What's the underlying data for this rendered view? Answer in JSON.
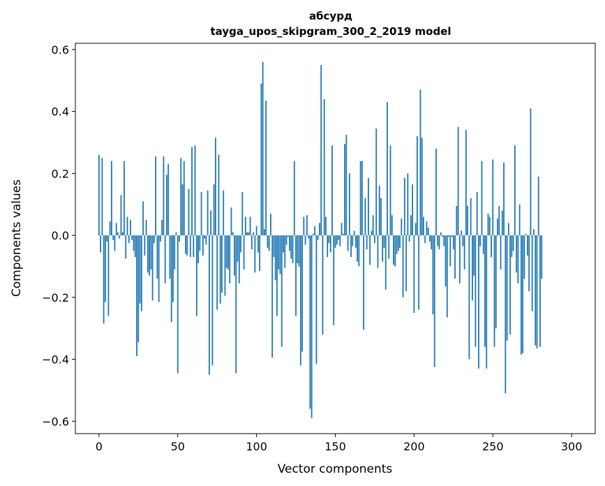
{
  "chart_data": {
    "type": "bar",
    "title": "абсурд",
    "subtitle": "tayga_upos_skipgram_300_2_2019 model",
    "xlabel": "Vector components",
    "ylabel": "Components values",
    "xlim": [
      -15,
      315
    ],
    "ylim": [
      -0.64,
      0.62
    ],
    "xticks": [
      0,
      50,
      100,
      150,
      200,
      250,
      300
    ],
    "xtick_labels": [
      "0",
      "50",
      "100",
      "150",
      "200",
      "250",
      "300"
    ],
    "yticks": [
      -0.6,
      -0.4,
      -0.2,
      0.0,
      0.2,
      0.4,
      0.6
    ],
    "ytick_labels": [
      "−0.6",
      "−0.4",
      "−0.2",
      "0.0",
      "0.2",
      "0.4",
      "0.6"
    ],
    "grid": false,
    "bar_color": "#1f77b4",
    "values": [
      0.26,
      -0.055,
      0.25,
      -0.285,
      -0.215,
      -0.02,
      -0.26,
      0.045,
      0.24,
      -0.015,
      -0.05,
      0.04,
      0.01,
      -0.01,
      0.13,
      0.01,
      0.24,
      -0.075,
      0.06,
      -0.025,
      0.05,
      -0.015,
      -0.05,
      -0.07,
      -0.39,
      -0.345,
      -0.22,
      -0.245,
      0.11,
      -0.065,
      0.05,
      -0.12,
      -0.13,
      -0.11,
      -0.21,
      -0.025,
      0.255,
      -0.14,
      -0.215,
      -0.02,
      0.05,
      0.255,
      -0.155,
      0.195,
      0.23,
      -0.14,
      -0.28,
      -0.215,
      -0.11,
      0.01,
      -0.445,
      -0.02,
      0.25,
      0.165,
      0.24,
      -0.06,
      -0.065,
      0.15,
      -0.07,
      0.285,
      -0.07,
      0.29,
      -0.26,
      -0.09,
      -0.05,
      0.14,
      -0.065,
      -0.01,
      -0.03,
      0.145,
      -0.45,
      0.08,
      -0.42,
      0.165,
      0.315,
      -0.24,
      0.26,
      -0.22,
      -0.185,
      0.145,
      -0.195,
      -0.105,
      -0.11,
      -0.155,
      0.09,
      0.01,
      -0.13,
      -0.445,
      -0.085,
      -0.155,
      -0.055,
      0.14,
      -0.11,
      0.06,
      0.01,
      0.01,
      0.06,
      -0.045,
      0.01,
      -0.12,
      0.03,
      -0.055,
      -0.115,
      0.49,
      0.56,
      0.02,
      0.435,
      -0.04,
      -0.05,
      0.07,
      -0.395,
      -0.07,
      -0.145,
      -0.26,
      -0.11,
      -0.125,
      -0.36,
      -0.055,
      -0.105,
      -0.03,
      -0.005,
      -0.05,
      -0.075,
      -0.09,
      0.24,
      -0.26,
      -0.09,
      -0.1,
      -0.42,
      -0.375,
      0.06,
      -0.03,
      0.065,
      -0.01,
      -0.56,
      -0.59,
      0.005,
      0.03,
      -0.415,
      -0.015,
      0.04,
      0.55,
      -0.32,
      0.44,
      0.06,
      -0.07,
      -0.025,
      -0.055,
      0.29,
      -0.29,
      -0.04,
      -0.03,
      -0.015,
      -0.035,
      0.04,
      0.005,
      0.295,
      0.325,
      -0.05,
      0.2,
      -0.07,
      -0.035,
      0.015,
      -0.04,
      -0.085,
      -0.1,
      0.24,
      0.24,
      -0.305,
      0.12,
      -0.045,
      0.185,
      -0.095,
      0.015,
      0.065,
      -0.025,
      0.345,
      -0.105,
      0.16,
      0.12,
      -0.085,
      -0.04,
      -0.175,
      0.43,
      -0.075,
      0.29,
      0.065,
      -0.095,
      -0.1,
      -0.06,
      -0.05,
      -0.04,
      0.055,
      -0.2,
      0.185,
      -0.18,
      0.2,
      -0.02,
      0.065,
      0.165,
      -0.25,
      0.04,
      0.32,
      -0.24,
      0.47,
      0.315,
      0.06,
      -0.025,
      0.045,
      0.025,
      -0.02,
      -0.045,
      -0.255,
      -0.425,
      0.28,
      -0.035,
      -0.045,
      0.01,
      -0.005,
      -0.035,
      -0.165,
      -0.265,
      -0.005,
      -0.1,
      -0.005,
      -0.045,
      -0.14,
      0.095,
      0.35,
      -0.155,
      0.015,
      -0.035,
      -0.11,
      0.34,
      0.095,
      -0.4,
      0.12,
      -0.21,
      -0.13,
      -0.36,
      0.14,
      -0.43,
      -0.035,
      0.24,
      -0.06,
      -0.36,
      -0.43,
      0.07,
      0.06,
      -0.07,
      0.245,
      -0.36,
      -0.3,
      0.055,
      0.095,
      -0.11,
      0.08,
      0.235,
      -0.51,
      -0.34,
      0.04,
      -0.32,
      -0.07,
      -0.05,
      0.29,
      -0.12,
      -0.155,
      0.1,
      -0.385,
      -0.38,
      -0.14,
      0.005,
      -0.065,
      -0.18,
      0.41,
      -0.245,
      0.02,
      -0.355,
      -0.365,
      0.19,
      -0.36,
      -0.14
    ]
  }
}
